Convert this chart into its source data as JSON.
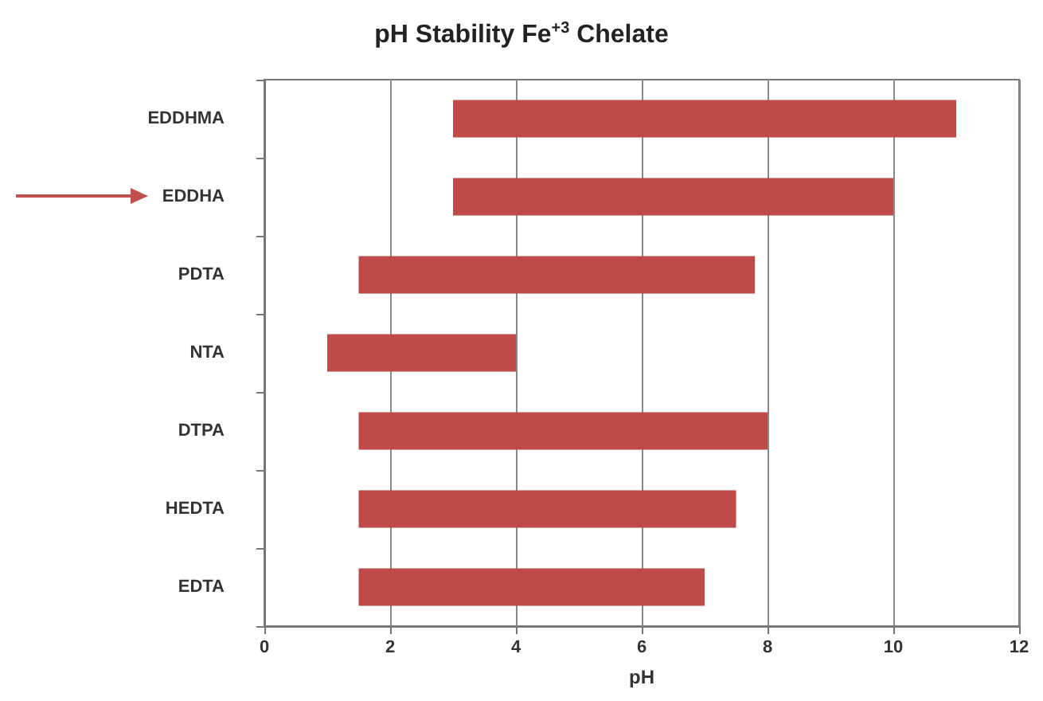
{
  "chart_data": {
    "type": "bar",
    "orientation": "horizontal",
    "title": "pH Stability Fe$^{+3}$ Chelate",
    "xlabel": "pH",
    "categories": [
      "EDDHMA",
      "EDDHA",
      "PDTA",
      "NTA",
      "DTPA",
      "HEDTA",
      "EDTA"
    ],
    "base": [
      3,
      3,
      1.5,
      1,
      1.5,
      1.5,
      1.5
    ],
    "values": [
      8,
      7,
      6.3,
      3,
      6.5,
      6,
      5.5
    ],
    "color": "#be4b48",
    "xlim": [
      0,
      12
    ],
    "xticks": [
      0,
      2,
      4,
      6,
      8,
      10,
      12
    ],
    "grid": "x"
  }
}
